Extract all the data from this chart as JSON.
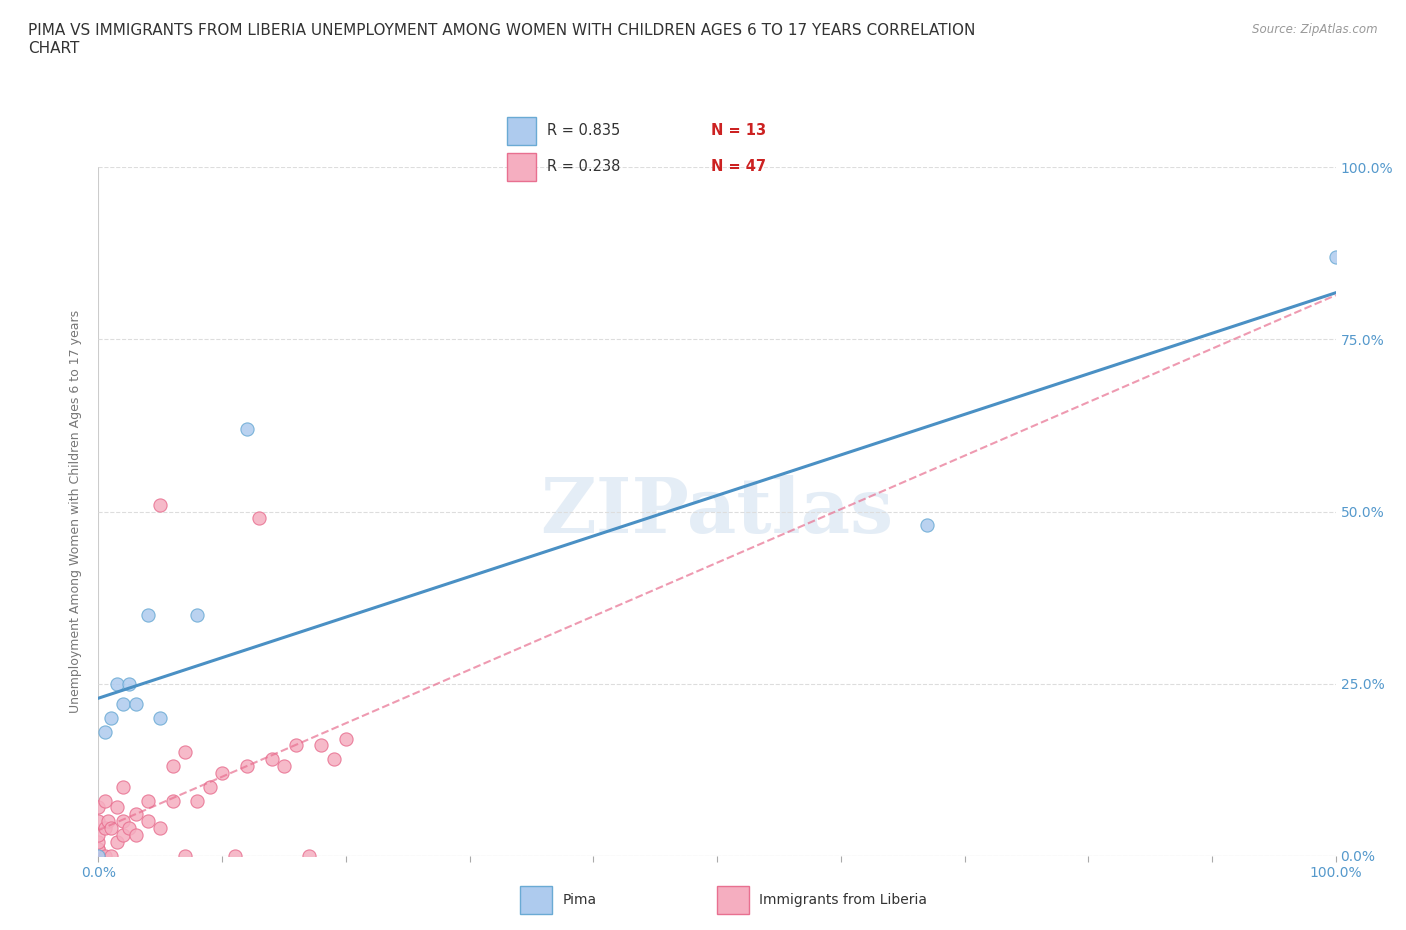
{
  "title": "PIMA VS IMMIGRANTS FROM LIBERIA UNEMPLOYMENT AMONG WOMEN WITH CHILDREN AGES 6 TO 17 YEARS CORRELATION\nCHART",
  "source": "Source: ZipAtlas.com",
  "ylabel": "Unemployment Among Women with Children Ages 6 to 17 years",
  "watermark": "ZIPatlas",
  "pima_color": "#aecbee",
  "liberia_color": "#f5aec0",
  "pima_edge_color": "#6aaad4",
  "liberia_edge_color": "#e87090",
  "pima_line_color": "#4a90c4",
  "liberia_line_color": "#e87090",
  "axis_tick_color": "#5599cc",
  "grid_color": "#dddddd",
  "background_color": "#ffffff",
  "legend_R_color": "#4477cc",
  "legend_N_color": "#cc2222",
  "pima_x": [
    0.0,
    0.005,
    0.01,
    0.015,
    0.02,
    0.025,
    0.03,
    0.04,
    0.05,
    0.08,
    0.12,
    0.67,
    1.0
  ],
  "pima_y": [
    0.0,
    0.18,
    0.2,
    0.25,
    0.22,
    0.25,
    0.22,
    0.35,
    0.2,
    0.35,
    0.62,
    0.48,
    0.87
  ],
  "liberia_x": [
    0.0,
    0.0,
    0.0,
    0.0,
    0.0,
    0.0,
    0.0,
    0.0,
    0.0,
    0.0,
    0.0,
    0.0,
    0.005,
    0.005,
    0.005,
    0.008,
    0.01,
    0.01,
    0.015,
    0.015,
    0.02,
    0.02,
    0.02,
    0.025,
    0.03,
    0.03,
    0.04,
    0.04,
    0.05,
    0.05,
    0.06,
    0.06,
    0.07,
    0.07,
    0.08,
    0.09,
    0.1,
    0.11,
    0.12,
    0.13,
    0.14,
    0.15,
    0.16,
    0.17,
    0.18,
    0.19,
    0.2
  ],
  "liberia_y": [
    0.0,
    0.0,
    0.0,
    0.0,
    0.0,
    0.0,
    0.01,
    0.01,
    0.02,
    0.03,
    0.05,
    0.07,
    0.0,
    0.04,
    0.08,
    0.05,
    0.0,
    0.04,
    0.02,
    0.07,
    0.03,
    0.05,
    0.1,
    0.04,
    0.03,
    0.06,
    0.05,
    0.08,
    0.04,
    0.51,
    0.08,
    0.13,
    0.0,
    0.15,
    0.08,
    0.1,
    0.12,
    0.0,
    0.13,
    0.49,
    0.14,
    0.13,
    0.16,
    0.0,
    0.16,
    0.14,
    0.17
  ],
  "xlim": [
    0.0,
    1.0
  ],
  "ylim": [
    0.0,
    1.0
  ],
  "title_fontsize": 11,
  "tick_fontsize": 10,
  "ylabel_fontsize": 9
}
